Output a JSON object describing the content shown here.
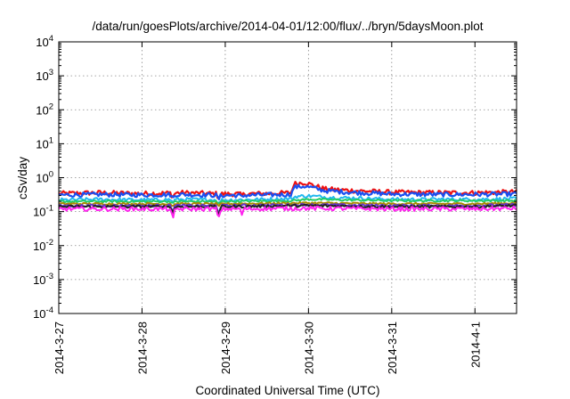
{
  "chart_data": {
    "type": "line",
    "title": "/data/run/goesPlots/archive/2014-04-01/12:00/flux/../bryn/5daysMoon.plot",
    "xlabel": "Coordinated Universal Time (UTC)",
    "ylabel": "cSv/day",
    "yscale": "log",
    "ylim": [
      0.0001,
      10000
    ],
    "xlim": [
      0,
      5.5
    ],
    "x_unit": "days since 2014-3-27 00:00 UTC",
    "grid": true,
    "legend": "none",
    "yticks": [
      {
        "value": 0.0001,
        "base": "10",
        "exp": "-4"
      },
      {
        "value": 0.001,
        "base": "10",
        "exp": "-3"
      },
      {
        "value": 0.01,
        "base": "10",
        "exp": "-2"
      },
      {
        "value": 0.1,
        "base": "10",
        "exp": "-1"
      },
      {
        "value": 1,
        "base": "10",
        "exp": "0"
      },
      {
        "value": 10,
        "base": "10",
        "exp": "1"
      },
      {
        "value": 100,
        "base": "10",
        "exp": "2"
      },
      {
        "value": 1000,
        "base": "10",
        "exp": "3"
      },
      {
        "value": 10000,
        "base": "10",
        "exp": "4"
      }
    ],
    "xticks": [
      {
        "value": 0,
        "label": "2014-3-27"
      },
      {
        "value": 1,
        "label": "2014-3-28"
      },
      {
        "value": 2,
        "label": "2014-3-29"
      },
      {
        "value": 3,
        "label": "2014-3-30"
      },
      {
        "value": 4,
        "label": "2014-3-31"
      },
      {
        "value": 5,
        "label": "2014-4-1"
      }
    ],
    "series": [
      {
        "color": "#ee1111",
        "base": [
          [
            0,
            0.34
          ],
          [
            0.5,
            0.36
          ],
          [
            1,
            0.34
          ],
          [
            1.5,
            0.36
          ],
          [
            2,
            0.33
          ],
          [
            2.5,
            0.34
          ],
          [
            2.8,
            0.36
          ],
          [
            2.82,
            0.66
          ],
          [
            2.95,
            0.72
          ],
          [
            3.05,
            0.6
          ],
          [
            3.2,
            0.46
          ],
          [
            3.5,
            0.42
          ],
          [
            4,
            0.37
          ],
          [
            4.5,
            0.36
          ],
          [
            5,
            0.36
          ],
          [
            5.5,
            0.38
          ]
        ],
        "jitter": 0.14,
        "dips": [
          [
            1.37,
            0.75
          ],
          [
            1.92,
            0.75
          ],
          [
            2.2,
            0.85
          ]
        ]
      },
      {
        "color": "#1a4ff0",
        "base": [
          [
            0,
            0.31
          ],
          [
            0.5,
            0.32
          ],
          [
            1,
            0.31
          ],
          [
            1.5,
            0.32
          ],
          [
            2,
            0.3
          ],
          [
            2.5,
            0.31
          ],
          [
            2.8,
            0.32
          ],
          [
            2.82,
            0.52
          ],
          [
            2.95,
            0.56
          ],
          [
            3.05,
            0.5
          ],
          [
            3.2,
            0.41
          ],
          [
            3.5,
            0.37
          ],
          [
            4,
            0.33
          ],
          [
            4.5,
            0.32
          ],
          [
            5,
            0.32
          ],
          [
            5.5,
            0.33
          ]
        ],
        "jitter": 0.13,
        "dips": [
          [
            1.37,
            0.75
          ],
          [
            1.92,
            0.75
          ],
          [
            2.2,
            0.85
          ]
        ]
      },
      {
        "color": "#22b8ee",
        "base": [
          [
            0,
            0.22
          ],
          [
            0.5,
            0.23
          ],
          [
            1,
            0.22
          ],
          [
            1.5,
            0.23
          ],
          [
            2,
            0.22
          ],
          [
            2.5,
            0.23
          ],
          [
            2.8,
            0.24
          ],
          [
            2.85,
            0.28
          ],
          [
            3.0,
            0.29
          ],
          [
            3.3,
            0.26
          ],
          [
            3.6,
            0.25
          ],
          [
            4,
            0.23
          ],
          [
            4.5,
            0.23
          ],
          [
            5,
            0.23
          ],
          [
            5.5,
            0.24
          ]
        ],
        "jitter": 0.1,
        "dips": [
          [
            1.37,
            0.8
          ],
          [
            1.92,
            0.75
          ]
        ]
      },
      {
        "color": "#22cc66",
        "base": [
          [
            0,
            0.2
          ],
          [
            1,
            0.2
          ],
          [
            2,
            0.2
          ],
          [
            2.8,
            0.21
          ],
          [
            3.0,
            0.23
          ],
          [
            3.5,
            0.22
          ],
          [
            4,
            0.21
          ],
          [
            5,
            0.21
          ],
          [
            5.5,
            0.21
          ]
        ],
        "jitter": 0.06,
        "dips": [
          [
            1.37,
            0.85
          ],
          [
            1.92,
            0.8
          ]
        ]
      },
      {
        "color": "#aa8800",
        "base": [
          [
            0,
            0.17
          ],
          [
            1,
            0.17
          ],
          [
            2,
            0.17
          ],
          [
            3,
            0.18
          ],
          [
            4,
            0.17
          ],
          [
            5,
            0.17
          ],
          [
            5.5,
            0.18
          ]
        ],
        "jitter": 0.06,
        "dips": [
          [
            1.37,
            0.85
          ],
          [
            1.92,
            0.8
          ]
        ]
      },
      {
        "color": "#6633cc",
        "base": [
          [
            0,
            0.15
          ],
          [
            1,
            0.15
          ],
          [
            2,
            0.15
          ],
          [
            3,
            0.16
          ],
          [
            4,
            0.15
          ],
          [
            5,
            0.15
          ],
          [
            5.5,
            0.16
          ]
        ],
        "jitter": 0.07,
        "dips": [
          [
            1.37,
            0.7
          ],
          [
            1.92,
            0.6
          ]
        ]
      },
      {
        "color": "#222222",
        "base": [
          [
            0,
            0.14
          ],
          [
            1,
            0.14
          ],
          [
            2,
            0.14
          ],
          [
            3,
            0.15
          ],
          [
            4,
            0.14
          ],
          [
            5,
            0.14
          ],
          [
            5.5,
            0.15
          ]
        ],
        "jitter": 0.08,
        "dips": [
          [
            1.37,
            0.6
          ],
          [
            1.92,
            0.5
          ]
        ]
      },
      {
        "color": "#ff22ee",
        "base": [
          [
            0,
            0.12
          ],
          [
            1,
            0.12
          ],
          [
            2,
            0.12
          ],
          [
            3,
            0.125
          ],
          [
            4,
            0.12
          ],
          [
            5,
            0.12
          ],
          [
            5.5,
            0.125
          ]
        ],
        "jitter": 0.12,
        "dips": [
          [
            1.37,
            0.4
          ],
          [
            1.92,
            0.44
          ],
          [
            2.2,
            0.7
          ]
        ]
      }
    ]
  }
}
